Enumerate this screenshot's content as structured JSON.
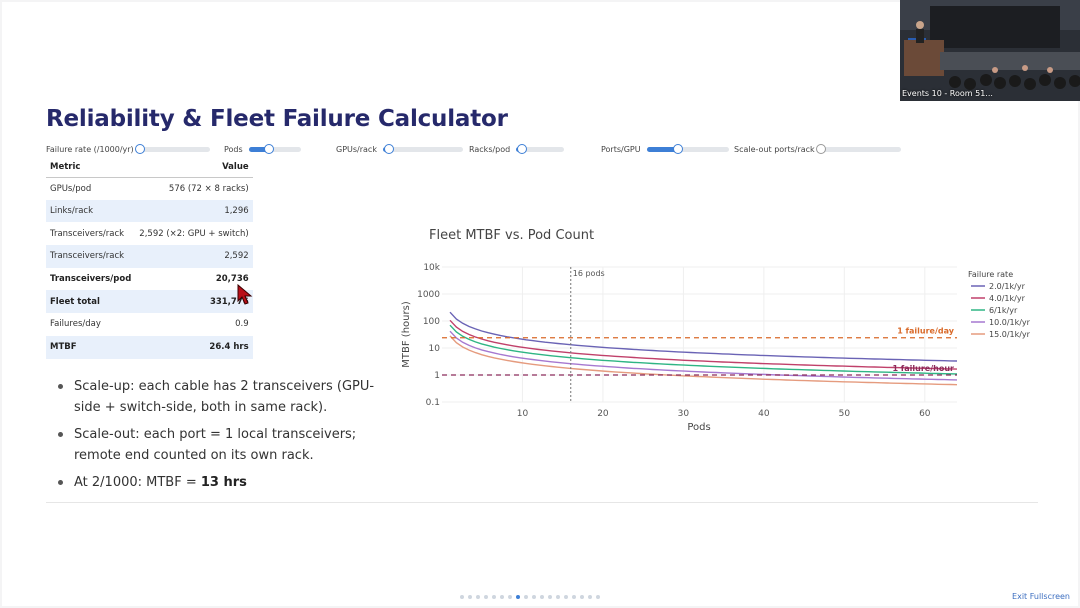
{
  "title": "Reliability & Fleet Failure Calculator",
  "controls": [
    {
      "label": "Failure rate (/1000/yr)",
      "level": 0.0
    },
    {
      "label": "Pods",
      "level": 0.4
    },
    {
      "label": "GPUs/rack",
      "level": 0.07
    },
    {
      "label": "Racks/pod",
      "level": 0.12
    },
    {
      "label": "Ports/GPU",
      "level": 0.38
    },
    {
      "label": "Scale-out ports/rack",
      "level": 0.0
    }
  ],
  "metrics_table": {
    "headers": {
      "metric": "Metric",
      "value": "Value"
    },
    "rows": [
      {
        "metric": "GPUs/pod",
        "value": "576 (72 × 8 racks)",
        "shaded": false,
        "bold": false
      },
      {
        "metric": "Links/rack",
        "value": "1,296",
        "shaded": true,
        "bold": false
      },
      {
        "metric": "Transceivers/rack",
        "value": "2,592 (×2: GPU + switch)",
        "shaded": false,
        "bold": false
      },
      {
        "metric": "Transceivers/rack",
        "value": "2,592",
        "shaded": true,
        "bold": false
      },
      {
        "metric": "Transceivers/pod",
        "value": "20,736",
        "shaded": false,
        "bold": true
      },
      {
        "metric": "Fleet total",
        "value": "331,776",
        "shaded": true,
        "bold": true
      },
      {
        "metric": "Failures/day",
        "value": "0.9",
        "shaded": false,
        "bold": false
      },
      {
        "metric": "MTBF",
        "value": "26.4 hrs",
        "shaded": true,
        "bold": true
      }
    ]
  },
  "bullets": [
    {
      "text": "Scale-up: each cable has 2 transceivers (GPU-side + switch-side, both in same rack).",
      "bold": ""
    },
    {
      "text": "Scale-out: each port = 1 local transceivers; remote end counted on its own rack.",
      "bold": ""
    },
    {
      "text": "At 2/1000: MTBF = ",
      "bold": "13 hrs"
    }
  ],
  "chart_data": {
    "type": "line",
    "title": "Fleet MTBF vs. Pod Count",
    "xlabel": "Pods",
    "ylabel": "MTBF (hours)",
    "x_ticks": [
      10,
      20,
      30,
      40,
      50,
      60
    ],
    "y_ticks": [
      "0.1",
      "1",
      "10",
      "100",
      "1000",
      "10k"
    ],
    "y_scale": "log",
    "xlim": [
      0,
      64
    ],
    "ylim": [
      0.1,
      10000
    ],
    "grid": true,
    "legend_title": "Failure rate",
    "legend_position": "right",
    "x": [
      1,
      2,
      4,
      8,
      16,
      32,
      64
    ],
    "series": [
      {
        "name": "2.0/1k/yr",
        "color": "#6a63b5",
        "values": [
          211,
          106,
          53,
          26.4,
          13.2,
          6.6,
          3.3
        ]
      },
      {
        "name": "4.0/1k/yr",
        "color": "#c0406a",
        "values": [
          106,
          53,
          26.4,
          13.2,
          6.6,
          3.3,
          1.65
        ]
      },
      {
        "name": "6/1k/yr",
        "color": "#2fb584",
        "values": [
          70,
          35,
          17.6,
          8.8,
          4.4,
          2.2,
          1.1
        ]
      },
      {
        "name": "10.0/1k/yr",
        "color": "#a678d0",
        "values": [
          42,
          21,
          10.6,
          5.3,
          2.6,
          1.3,
          0.66
        ]
      },
      {
        "name": "15.0/1k/yr",
        "color": "#e59b7e",
        "values": [
          28,
          14,
          7.0,
          3.5,
          1.76,
          0.88,
          0.44
        ]
      }
    ],
    "reference_lines": [
      {
        "label": "1 failure/day",
        "y": 24,
        "color": "#d96a2a"
      },
      {
        "label": "1 failure/hour",
        "y": 1,
        "color": "#8a2a5a"
      }
    ],
    "marker": {
      "label": "16 pods",
      "x": 16
    }
  },
  "pagination": {
    "count": 18,
    "active": 7
  },
  "exit_label": "Exit Fullscreen",
  "video_caption": "Events 10 - Room 51..."
}
